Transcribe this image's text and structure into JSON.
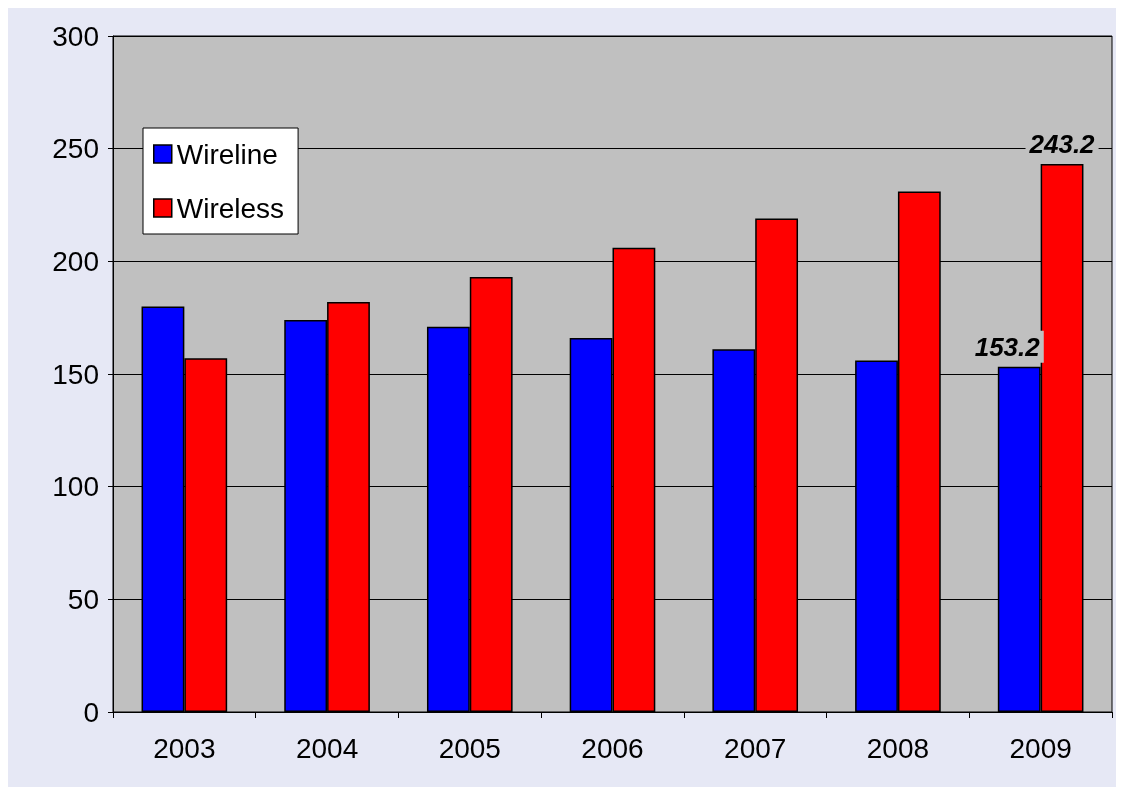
{
  "chart_data": {
    "type": "bar",
    "categories": [
      "2003",
      "2004",
      "2005",
      "2006",
      "2007",
      "2008",
      "2009"
    ],
    "series": [
      {
        "name": "Wireline",
        "color": "#0000ff",
        "values": [
          180,
          174,
          171,
          166,
          161,
          156,
          153.2
        ],
        "value_labels": [
          null,
          null,
          null,
          null,
          null,
          null,
          "153.2"
        ]
      },
      {
        "name": "Wireless",
        "color": "#ff0000",
        "values": [
          157,
          182,
          193,
          206,
          219,
          231,
          243.2
        ],
        "value_labels": [
          null,
          null,
          null,
          null,
          null,
          null,
          "243.2"
        ]
      }
    ],
    "ylim": [
      0,
      300
    ],
    "yticks": [
      0,
      50,
      100,
      150,
      200,
      250,
      300
    ],
    "grid": "y",
    "legend": "top left"
  }
}
